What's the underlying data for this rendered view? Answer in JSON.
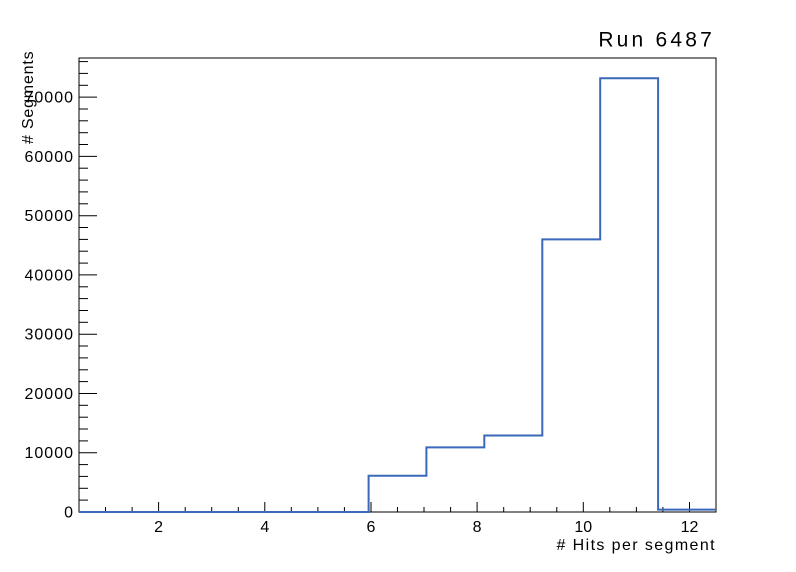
{
  "window": {
    "background": "#ffffff"
  },
  "chart_data": {
    "type": "histogram-step",
    "title": "Run 6487",
    "xlabel": "# Hits per segment",
    "ylabel": "# Segments",
    "x_range": [
      0.5,
      12.5
    ],
    "n_bins": 11,
    "bin_edges": [
      0.5,
      1.591,
      2.682,
      3.773,
      4.864,
      5.955,
      7.045,
      8.136,
      9.227,
      10.318,
      11.409,
      12.5
    ],
    "values": [
      0,
      0,
      0,
      0,
      0,
      6100,
      10900,
      12900,
      46000,
      73200,
      400
    ],
    "ylim": [
      0,
      76600
    ],
    "x_major_ticks": [
      2,
      4,
      6,
      8,
      10,
      12
    ],
    "x_minor_tick_step": 0.5,
    "y_major_ticks": [
      0,
      10000,
      20000,
      30000,
      40000,
      50000,
      60000,
      70000
    ],
    "y_minor_tick_step": 2000,
    "grid": false,
    "legend": null,
    "line_color": "#3a68ba",
    "axis_color": "#000000",
    "background_color": "#ffffff"
  }
}
